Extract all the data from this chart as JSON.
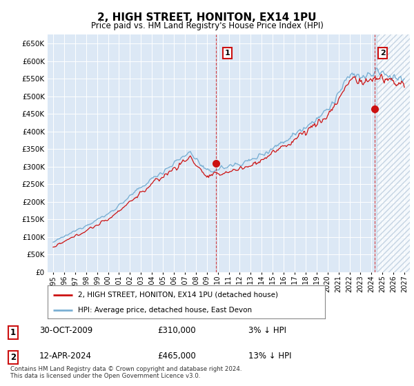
{
  "title": "2, HIGH STREET, HONITON, EX14 1PU",
  "subtitle": "Price paid vs. HM Land Registry's House Price Index (HPI)",
  "ylim": [
    0,
    675000
  ],
  "yticks": [
    0,
    50000,
    100000,
    150000,
    200000,
    250000,
    300000,
    350000,
    400000,
    450000,
    500000,
    550000,
    600000,
    650000
  ],
  "line_color_hpi": "#7ab0d4",
  "line_color_price": "#cc1111",
  "sale1_x": 2009.83,
  "sale1_y": 310000,
  "sale2_x": 2024.28,
  "sale2_y": 465000,
  "hatch_start": 2024.5,
  "xmin": 1994.5,
  "xmax": 2027.5,
  "legend_price_label": "2, HIGH STREET, HONITON, EX14 1PU (detached house)",
  "legend_hpi_label": "HPI: Average price, detached house, East Devon",
  "annotation1_date": "30-OCT-2009",
  "annotation1_price": "£310,000",
  "annotation1_hpi": "3% ↓ HPI",
  "annotation2_date": "12-APR-2024",
  "annotation2_price": "£465,000",
  "annotation2_hpi": "13% ↓ HPI",
  "footer": "Contains HM Land Registry data © Crown copyright and database right 2024.\nThis data is licensed under the Open Government Licence v3.0.",
  "bg_color": "#dce8f5",
  "hatch_color": "#b0c4d8"
}
